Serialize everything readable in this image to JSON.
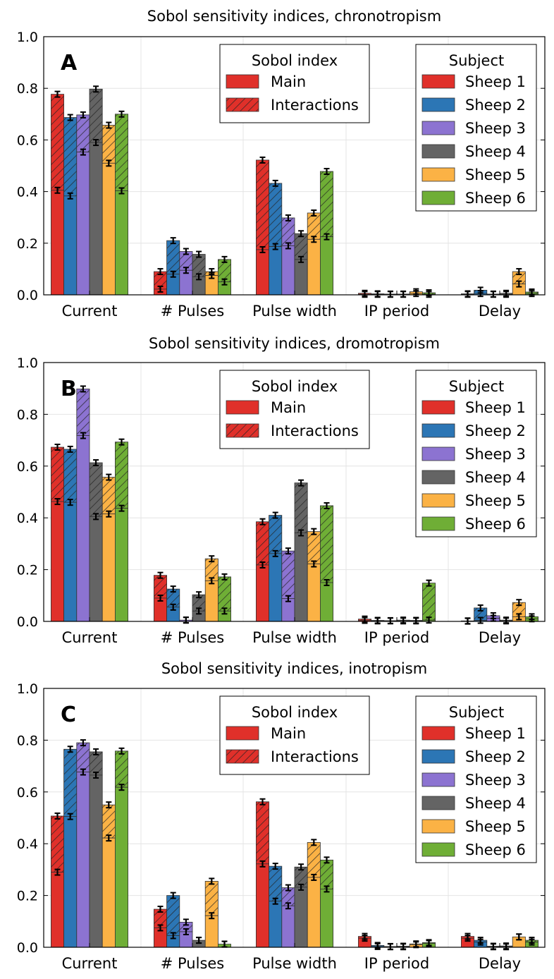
{
  "colors": {
    "Sheep 1": "#e0302a",
    "Sheep 2": "#2c76b5",
    "Sheep 3": "#8c73d1",
    "Sheep 4": "#646464",
    "Sheep 5": "#fbb245",
    "Sheep 6": "#6fae36"
  },
  "chart_data": [
    {
      "type": "bar",
      "panel": "A",
      "title": "Sobol sensitivity indices, chronotropism",
      "categories": [
        "Current",
        "# Pulses",
        "Pulse width",
        "IP period",
        "Delay"
      ],
      "ylim": [
        0,
        1.0
      ],
      "yticks": [
        "0.0",
        "0.2",
        "0.4",
        "0.6",
        "0.8",
        "1.0"
      ],
      "grid": true,
      "legend_index": {
        "title": "Sobol index",
        "entries": [
          "Main",
          "Interactions"
        ]
      },
      "legend_subject": {
        "title": "Subject",
        "entries": [
          "Sheep 1",
          "Sheep 2",
          "Sheep 3",
          "Sheep 4",
          "Sheep 5",
          "Sheep 6"
        ]
      },
      "series": [
        {
          "name": "Sheep 1",
          "main": [
            0.405,
            0.022,
            0.175,
            0.002,
            0.002
          ],
          "total": [
            0.777,
            0.09,
            0.522,
            0.006,
            0.004
          ]
        },
        {
          "name": "Sheep 2",
          "main": [
            0.383,
            0.08,
            0.187,
            0.002,
            0.005
          ],
          "total": [
            0.687,
            0.21,
            0.432,
            0.004,
            0.018
          ]
        },
        {
          "name": "Sheep 3",
          "main": [
            0.553,
            0.095,
            0.19,
            0.002,
            0.002
          ],
          "total": [
            0.697,
            0.168,
            0.298,
            0.003,
            0.003
          ]
        },
        {
          "name": "Sheep 4",
          "main": [
            0.59,
            0.07,
            0.137,
            0.002,
            0.002
          ],
          "total": [
            0.797,
            0.157,
            0.237,
            0.003,
            0.006
          ]
        },
        {
          "name": "Sheep 5",
          "main": [
            0.51,
            0.075,
            0.215,
            0.005,
            0.042
          ],
          "total": [
            0.657,
            0.09,
            0.317,
            0.012,
            0.09
          ]
        },
        {
          "name": "Sheep 6",
          "main": [
            0.403,
            0.05,
            0.225,
            0.002,
            0.005
          ],
          "total": [
            0.7,
            0.137,
            0.478,
            0.008,
            0.011
          ]
        }
      ]
    },
    {
      "type": "bar",
      "panel": "B",
      "title": "Sobol sensitivity indices, dromotropism",
      "categories": [
        "Current",
        "# Pulses",
        "Pulse width",
        "IP period",
        "Delay"
      ],
      "ylim": [
        0,
        1.0
      ],
      "yticks": [
        "0.0",
        "0.2",
        "0.4",
        "0.6",
        "0.8",
        "1.0"
      ],
      "grid": true,
      "legend_index": {
        "title": "Sobol index",
        "entries": [
          "Main",
          "Interactions"
        ]
      },
      "legend_subject": {
        "title": "Subject",
        "entries": [
          "Sheep 1",
          "Sheep 2",
          "Sheep 3",
          "Sheep 4",
          "Sheep 5",
          "Sheep 6"
        ]
      },
      "series": [
        {
          "name": "Sheep 1",
          "main": [
            0.463,
            0.09,
            0.218,
            0.004,
            0.001
          ],
          "total": [
            0.673,
            0.178,
            0.385,
            0.009,
            0.002
          ]
        },
        {
          "name": "Sheep 2",
          "main": [
            0.46,
            0.055,
            0.262,
            0.002,
            0.004
          ],
          "total": [
            0.665,
            0.125,
            0.41,
            0.004,
            0.052
          ]
        },
        {
          "name": "Sheep 3",
          "main": [
            0.718,
            0.005,
            0.088,
            0.002,
            0.012
          ],
          "total": [
            0.898,
            0.005,
            0.272,
            0.003,
            0.022
          ]
        },
        {
          "name": "Sheep 4",
          "main": [
            0.405,
            0.04,
            0.342,
            0.002,
            0.002
          ],
          "total": [
            0.613,
            0.103,
            0.535,
            0.005,
            0.005
          ]
        },
        {
          "name": "Sheep 5",
          "main": [
            0.415,
            0.157,
            0.222,
            0.002,
            0.018
          ],
          "total": [
            0.557,
            0.242,
            0.347,
            0.004,
            0.073
          ]
        },
        {
          "name": "Sheep 6",
          "main": [
            0.437,
            0.04,
            0.15,
            0.005,
            0.01
          ],
          "total": [
            0.693,
            0.172,
            0.447,
            0.148,
            0.018
          ]
        }
      ]
    },
    {
      "type": "bar",
      "panel": "C",
      "title": "Sobol sensitivity indices, inotropism",
      "categories": [
        "Current",
        "# Pulses",
        "Pulse width",
        "IP period",
        "Delay"
      ],
      "ylim": [
        0,
        1.0
      ],
      "yticks": [
        "0.0",
        "0.2",
        "0.4",
        "0.6",
        "0.8",
        "1.0"
      ],
      "grid": true,
      "legend_index": {
        "title": "Sobol index",
        "entries": [
          "Main",
          "Interactions"
        ]
      },
      "legend_subject": {
        "title": "Subject",
        "entries": [
          "Sheep 1",
          "Sheep 2",
          "Sheep 3",
          "Sheep 4",
          "Sheep 5",
          "Sheep 6"
        ]
      },
      "series": [
        {
          "name": "Sheep 1",
          "main": [
            0.29,
            0.075,
            0.322,
            0.035,
            0.035
          ],
          "total": [
            0.507,
            0.147,
            0.562,
            0.042,
            0.042
          ]
        },
        {
          "name": "Sheep 2",
          "main": [
            0.505,
            0.045,
            0.178,
            0.003,
            0.02
          ],
          "total": [
            0.765,
            0.2,
            0.313,
            0.007,
            0.027
          ]
        },
        {
          "name": "Sheep 3",
          "main": [
            0.677,
            0.06,
            0.16,
            0.002,
            0.002
          ],
          "total": [
            0.79,
            0.097,
            0.23,
            0.003,
            0.004
          ]
        },
        {
          "name": "Sheep 4",
          "main": [
            0.665,
            0.027,
            0.232,
            0.002,
            0.002
          ],
          "total": [
            0.755,
            0.027,
            0.31,
            0.004,
            0.005
          ]
        },
        {
          "name": "Sheep 5",
          "main": [
            0.422,
            0.122,
            0.27,
            0.01,
            0.04
          ],
          "total": [
            0.55,
            0.255,
            0.405,
            0.013,
            0.04
          ]
        },
        {
          "name": "Sheep 6",
          "main": [
            0.618,
            0.012,
            0.225,
            0.015,
            0.02
          ],
          "total": [
            0.758,
            0.012,
            0.337,
            0.018,
            0.027
          ]
        }
      ]
    }
  ]
}
